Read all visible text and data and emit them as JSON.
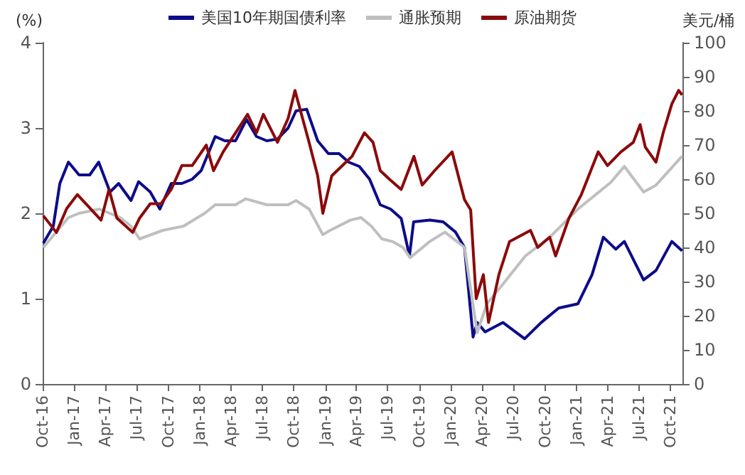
{
  "chart_data": {
    "type": "line",
    "ylabel": "(%)",
    "y2label": "美元/桶",
    "legend": "top",
    "grid": false,
    "marker": "none",
    "line_style": "solid",
    "xlim": [
      "2016-10-01",
      "2021-11-05"
    ],
    "xticks": [
      {
        "value": "2016-10",
        "label": "Oct-16"
      },
      {
        "value": "2017-01",
        "label": "Jan-17"
      },
      {
        "value": "2017-04",
        "label": "Apr-17"
      },
      {
        "value": "2017-07",
        "label": "Jul-17"
      },
      {
        "value": "2017-10",
        "label": "Oct-17"
      },
      {
        "value": "2018-01",
        "label": "Jan-18"
      },
      {
        "value": "2018-04",
        "label": "Apr-18"
      },
      {
        "value": "2018-07",
        "label": "Jul-18"
      },
      {
        "value": "2018-10",
        "label": "Oct-18"
      },
      {
        "value": "2019-01",
        "label": "Jan-19"
      },
      {
        "value": "2019-04",
        "label": "Apr-19"
      },
      {
        "value": "2019-07",
        "label": "Jul-19"
      },
      {
        "value": "2019-10",
        "label": "Oct-19"
      },
      {
        "value": "2020-01",
        "label": "Jan-20"
      },
      {
        "value": "2020-04",
        "label": "Apr-20"
      },
      {
        "value": "2020-07",
        "label": "Jul-20"
      },
      {
        "value": "2020-10",
        "label": "Oct-20"
      },
      {
        "value": "2021-01",
        "label": "Jan-21"
      },
      {
        "value": "2021-04",
        "label": "Apr-21"
      },
      {
        "value": "2021-07",
        "label": "Jul-21"
      },
      {
        "value": "2021-10",
        "label": "Oct-21"
      }
    ],
    "ylim": [
      0,
      4
    ],
    "yticks": [
      0,
      1,
      2,
      3,
      4
    ],
    "y2lim": [
      0,
      100
    ],
    "y2ticks": [
      0,
      10,
      20,
      30,
      40,
      50,
      60,
      70,
      80,
      90,
      100
    ],
    "series": [
      {
        "name": "美国10年期国债利率",
        "color": "#0c0c8a",
        "x": [
          "2016-10-03",
          "2016-11-01",
          "2016-11-20",
          "2016-12-15",
          "2017-01-15",
          "2017-02-15",
          "2017-03-13",
          "2017-04-15",
          "2017-05-10",
          "2017-06-15",
          "2017-07-07",
          "2017-08-10",
          "2017-09-07",
          "2017-10-10",
          "2017-11-10",
          "2017-12-10",
          "2018-01-05",
          "2018-02-15",
          "2018-03-15",
          "2018-04-15",
          "2018-05-17",
          "2018-06-15",
          "2018-07-15",
          "2018-08-15",
          "2018-09-15",
          "2018-10-08",
          "2018-11-08",
          "2018-12-10",
          "2019-01-10",
          "2019-02-10",
          "2019-03-10",
          "2019-04-10",
          "2019-05-10",
          "2019-06-10",
          "2019-07-10",
          "2019-08-10",
          "2019-09-03",
          "2019-09-15",
          "2019-11-01",
          "2019-12-10",
          "2020-01-15",
          "2020-02-10",
          "2020-03-06",
          "2020-03-18",
          "2020-04-10",
          "2020-06-01",
          "2020-08-03",
          "2020-09-20",
          "2020-11-10",
          "2021-01-05",
          "2021-02-15",
          "2021-03-20",
          "2021-04-25",
          "2021-05-20",
          "2021-07-15",
          "2021-08-20",
          "2021-10-05",
          "2021-11-04"
        ],
        "values": [
          1.65,
          1.85,
          2.35,
          2.6,
          2.45,
          2.45,
          2.6,
          2.25,
          2.35,
          2.15,
          2.37,
          2.25,
          2.05,
          2.35,
          2.35,
          2.4,
          2.5,
          2.9,
          2.85,
          2.85,
          3.1,
          2.9,
          2.85,
          2.87,
          3.0,
          3.2,
          3.22,
          2.85,
          2.7,
          2.7,
          2.6,
          2.55,
          2.4,
          2.1,
          2.05,
          1.94,
          1.5,
          1.9,
          1.92,
          1.9,
          1.78,
          1.6,
          0.55,
          0.72,
          0.61,
          0.72,
          0.53,
          0.72,
          0.89,
          0.94,
          1.28,
          1.72,
          1.58,
          1.67,
          1.22,
          1.33,
          1.67,
          1.56
        ]
      },
      {
        "name": "通胀预期",
        "color": "#bfbfbf",
        "x": [
          "2016-10-03",
          "2016-12-15",
          "2017-01-15",
          "2017-03-15",
          "2017-05-15",
          "2017-06-15",
          "2017-07-10",
          "2017-09-15",
          "2017-11-15",
          "2018-01-15",
          "2018-02-15",
          "2018-04-15",
          "2018-05-15",
          "2018-07-15",
          "2018-09-15",
          "2018-10-08",
          "2018-11-15",
          "2018-12-25",
          "2019-01-15",
          "2019-03-15",
          "2019-04-15",
          "2019-05-15",
          "2019-06-15",
          "2019-07-15",
          "2019-08-15",
          "2019-09-05",
          "2019-11-01",
          "2019-12-15",
          "2020-02-10",
          "2020-03-18",
          "2020-04-15",
          "2020-06-01",
          "2020-08-05",
          "2020-10-15",
          "2021-01-05",
          "2021-04-10",
          "2021-05-20",
          "2021-07-15",
          "2021-08-20",
          "2021-11-04"
        ],
        "values": [
          1.6,
          1.95,
          2.0,
          2.05,
          1.95,
          1.85,
          1.7,
          1.8,
          1.85,
          2.0,
          2.1,
          2.1,
          2.17,
          2.1,
          2.1,
          2.15,
          2.05,
          1.75,
          1.8,
          1.92,
          1.95,
          1.85,
          1.7,
          1.67,
          1.6,
          1.48,
          1.67,
          1.78,
          1.6,
          0.6,
          0.94,
          1.17,
          1.5,
          1.72,
          2.05,
          2.36,
          2.55,
          2.25,
          2.33,
          2.67
        ]
      },
      {
        "name": "原油期货",
        "color": "#8b0a0a",
        "axis": "y2",
        "x": [
          "2016-10-03",
          "2016-11-10",
          "2016-12-10",
          "2017-01-10",
          "2017-03-20",
          "2017-04-12",
          "2017-05-05",
          "2017-06-20",
          "2017-07-10",
          "2017-08-10",
          "2017-09-10",
          "2017-10-10",
          "2017-11-10",
          "2017-12-10",
          "2018-01-20",
          "2018-02-10",
          "2018-03-10",
          "2018-05-20",
          "2018-06-15",
          "2018-07-05",
          "2018-08-15",
          "2018-09-15",
          "2018-10-05",
          "2018-11-15",
          "2018-12-10",
          "2018-12-25",
          "2019-01-20",
          "2019-02-20",
          "2019-03-20",
          "2019-04-25",
          "2019-05-20",
          "2019-06-10",
          "2019-07-10",
          "2019-08-10",
          "2019-09-16",
          "2019-10-10",
          "2019-11-15",
          "2020-01-05",
          "2020-02-10",
          "2020-02-28",
          "2020-03-15",
          "2020-04-05",
          "2020-04-20",
          "2020-05-20",
          "2020-06-20",
          "2020-08-20",
          "2020-09-10",
          "2020-10-15",
          "2020-11-01",
          "2020-12-10",
          "2021-01-15",
          "2021-03-05",
          "2021-04-01",
          "2021-05-10",
          "2021-06-15",
          "2021-07-05",
          "2021-07-20",
          "2021-08-20",
          "2021-09-10",
          "2021-10-05",
          "2021-10-25",
          "2021-11-04"
        ],
        "values": [
          49.3,
          44.4,
          51.4,
          55.5,
          48,
          57,
          48.6,
          44.4,
          48.6,
          52.8,
          52.8,
          57,
          64,
          64,
          70,
          62.5,
          68,
          79,
          73.6,
          79,
          70.8,
          77.8,
          86,
          70.8,
          61,
          50,
          61,
          64,
          66.7,
          73.6,
          70.8,
          62.5,
          59.7,
          57,
          66.7,
          58.3,
          62.5,
          68,
          54,
          51,
          25,
          32,
          18,
          32,
          41.7,
          45,
          40,
          43,
          37.5,
          48.6,
          55.5,
          68,
          64,
          68,
          70.8,
          76,
          69.4,
          65,
          73.6,
          82,
          86,
          84.7
        ]
      }
    ]
  }
}
